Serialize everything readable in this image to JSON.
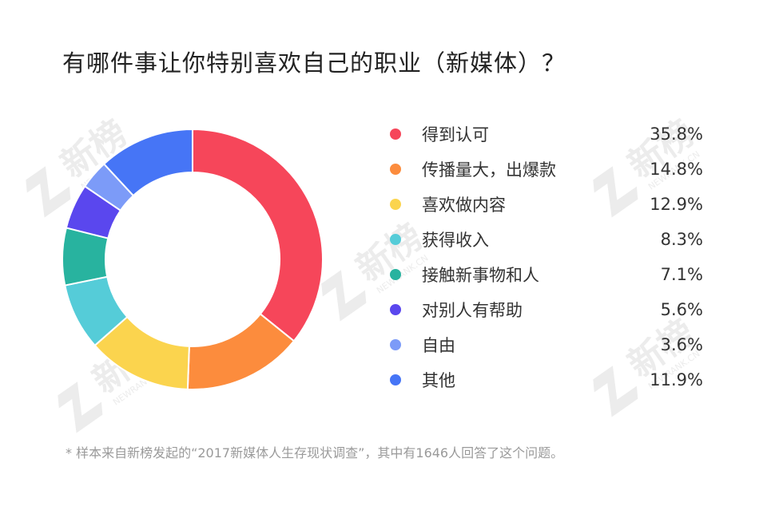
{
  "title": "有哪件事让你特别喜欢自己的职业（新媒体）？",
  "footnote": "* 样本来自新榜发起的“2017新媒体人生存现状调查”，其中有1646人回答了这个问题。",
  "watermark": {
    "text": "新榜",
    "subtext": "NEWRANK.CN",
    "color": "#ececec"
  },
  "chart_data": {
    "type": "pie",
    "donut": true,
    "categories": [
      "得到认可",
      "传播量大，出爆款",
      "喜欢做内容",
      "获得收入",
      "接触新事物和人",
      "对别人有帮助",
      "自由",
      "其他"
    ],
    "values": [
      35.8,
      14.8,
      12.9,
      8.3,
      7.1,
      5.6,
      3.6,
      11.9
    ],
    "value_labels": [
      "35.8%",
      "14.8%",
      "12.9%",
      "8.3%",
      "7.1%",
      "5.6%",
      "3.6%",
      "11.9%"
    ],
    "colors": [
      "#f6465a",
      "#fc8c3d",
      "#fbd44e",
      "#55ccd8",
      "#28b39f",
      "#5a47ee",
      "#7c9bf8",
      "#4675f6"
    ],
    "legend_position": "right"
  }
}
